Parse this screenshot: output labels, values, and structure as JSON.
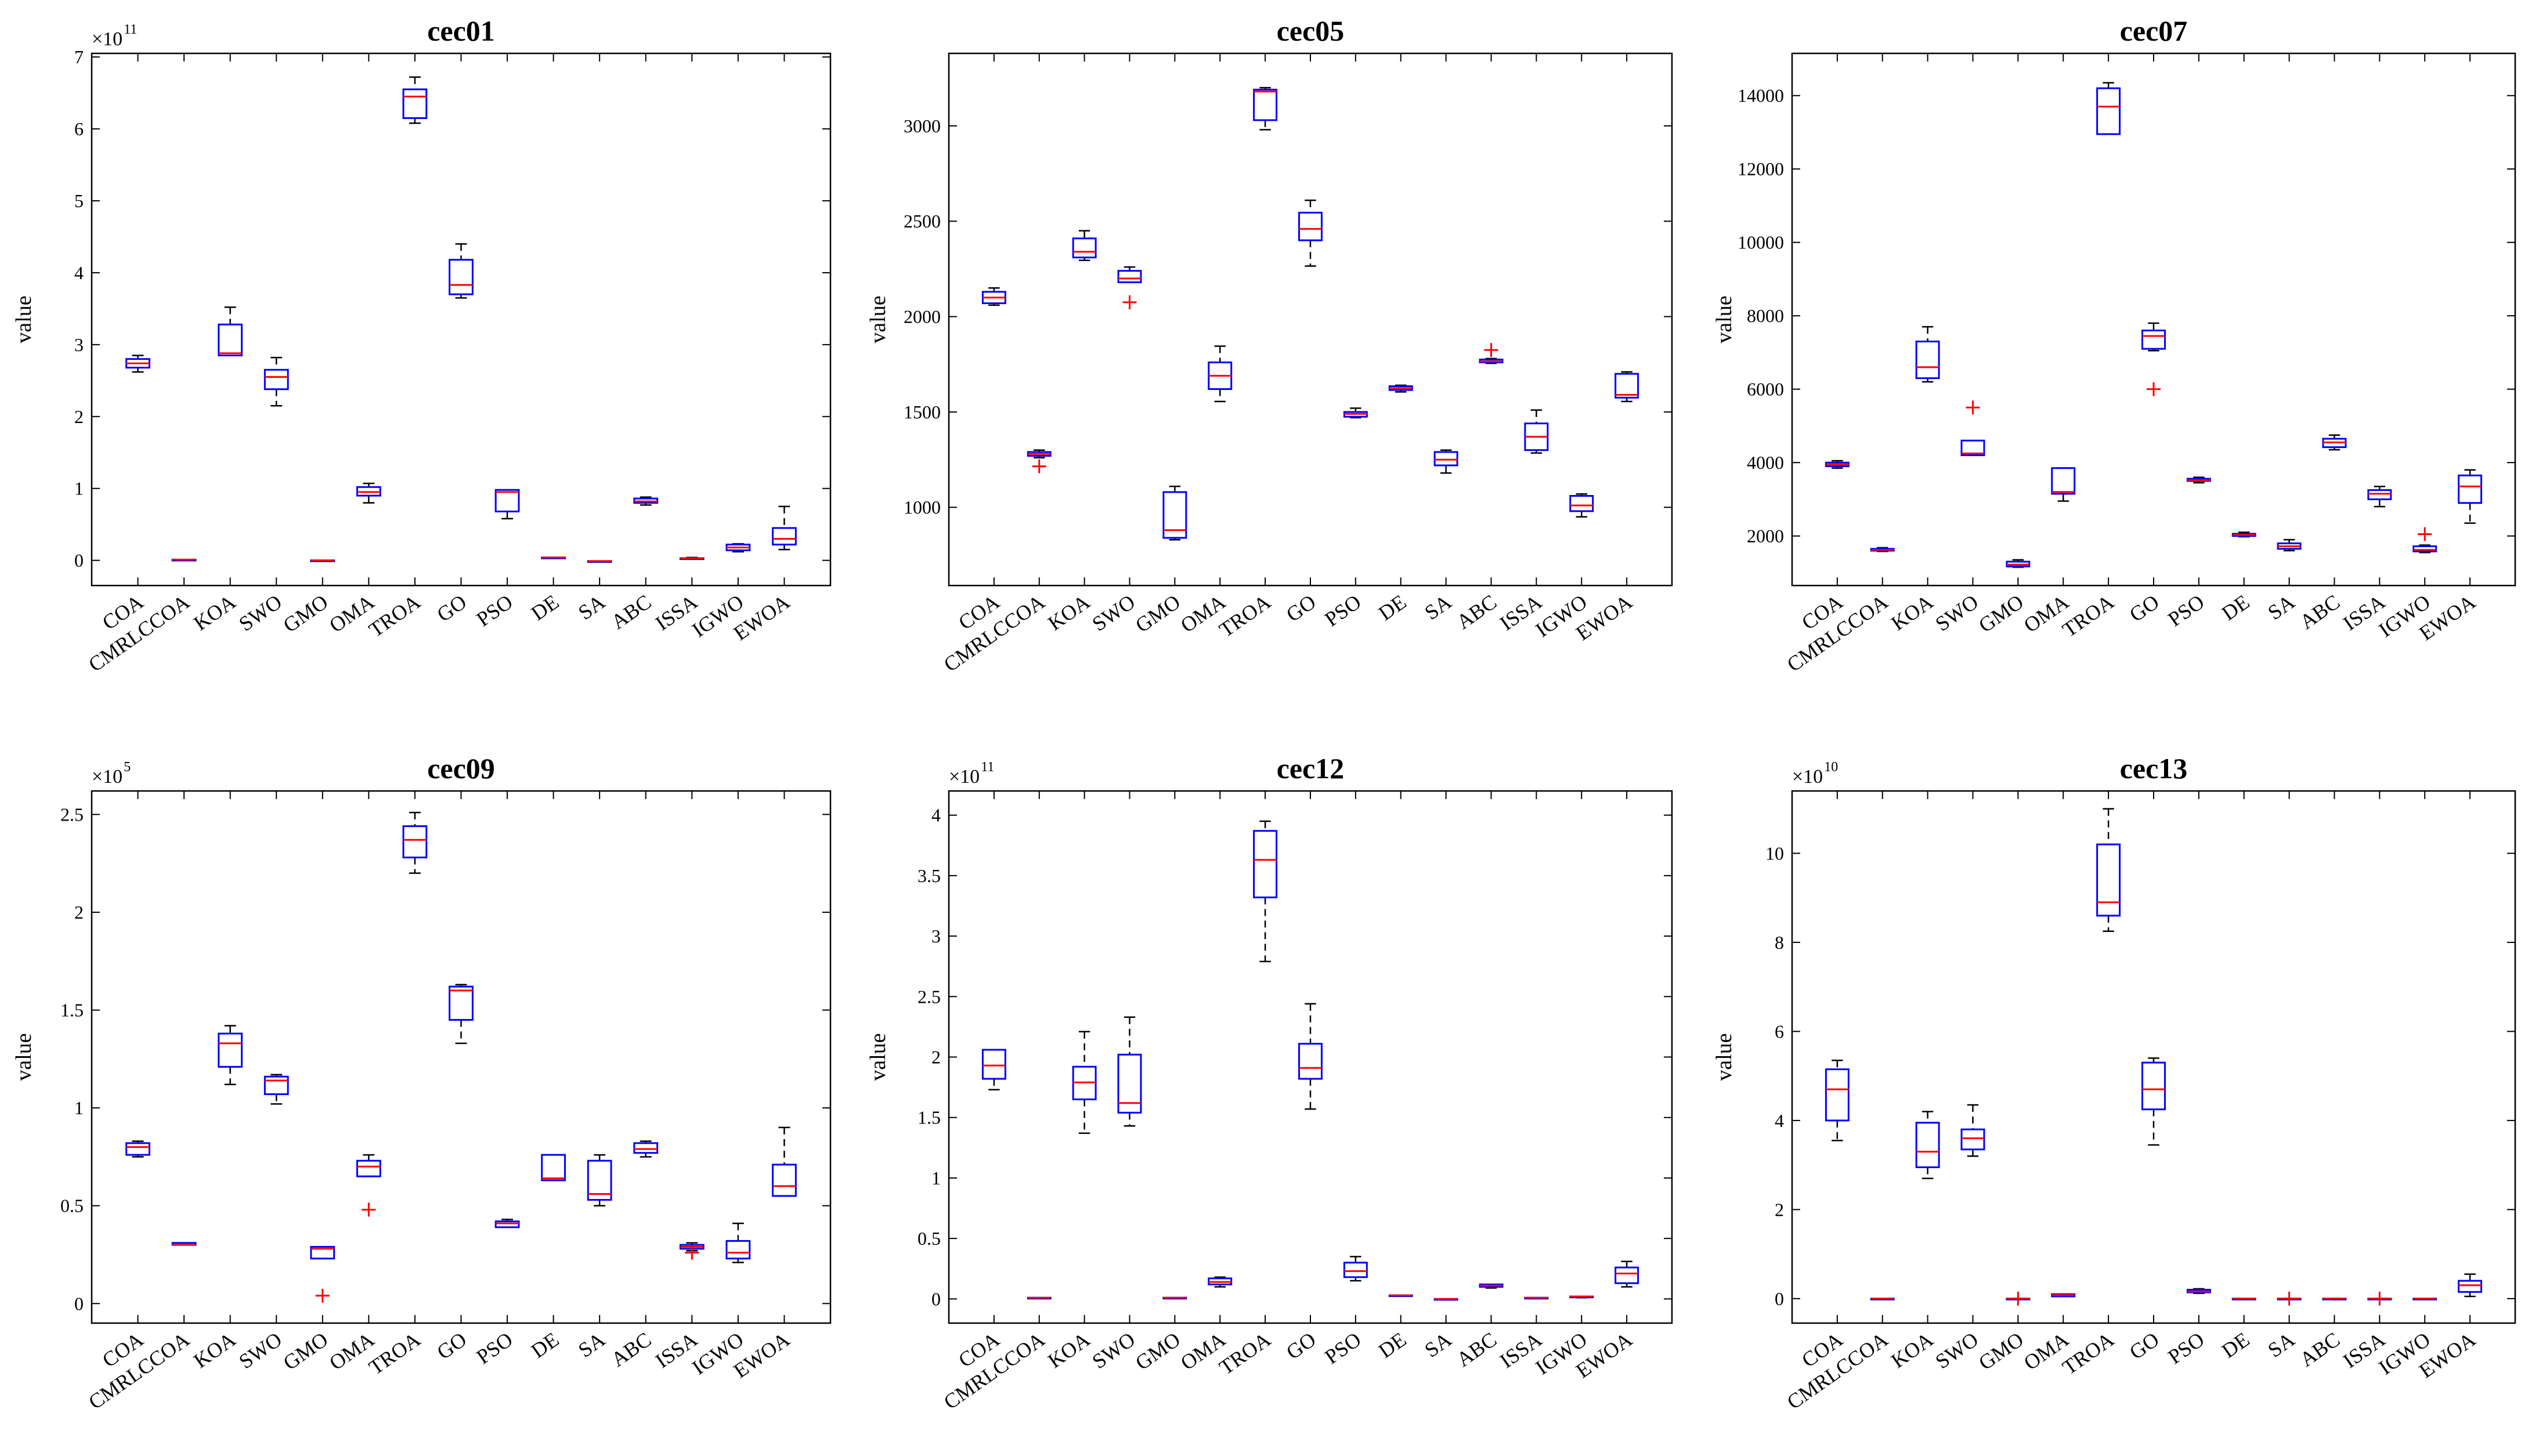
{
  "figure": {
    "categories": [
      "COA",
      "CMRLCCOA",
      "KOA",
      "SWO",
      "GMO",
      "OMA",
      "TROA",
      "GO",
      "PSO",
      "DE",
      "SA",
      "ABC",
      "ISSA",
      "IGWO",
      "EWOA"
    ],
    "colors": {
      "box": "#0000ff",
      "median": "#ff0000",
      "whisker": "#000000",
      "outlier": "#ff0000",
      "axis": "#000000"
    }
  },
  "chart_data": [
    {
      "type": "box",
      "title": "cec01",
      "ylabel": "value",
      "xlabel": "",
      "multiplier": {
        "base": "×10",
        "exp": "11"
      },
      "ylim": [
        -0.35,
        7.05
      ],
      "yticks": [
        0,
        1,
        2,
        3,
        4,
        5,
        6,
        7
      ],
      "ytick_labels": [
        "0",
        "1",
        "2",
        "3",
        "4",
        "5",
        "6",
        "7"
      ],
      "boxes": [
        [
          2.62,
          2.68,
          2.74,
          2.8,
          2.85
        ],
        [
          0.01,
          0.01,
          0.01,
          0.01,
          0.01
        ],
        [
          2.85,
          2.85,
          2.88,
          3.28,
          3.52
        ],
        [
          2.15,
          2.38,
          2.55,
          2.65,
          2.82
        ],
        [
          0.0,
          0.0,
          0.0,
          0.0,
          0.0
        ],
        [
          0.8,
          0.9,
          0.95,
          1.02,
          1.07
        ],
        [
          6.08,
          6.15,
          6.45,
          6.55,
          6.72
        ],
        [
          3.65,
          3.7,
          3.83,
          4.18,
          4.4
        ],
        [
          0.58,
          0.68,
          0.95,
          0.98,
          0.98
        ],
        [
          0.04,
          0.04,
          0.04,
          0.04,
          0.04
        ],
        [
          -0.01,
          -0.01,
          -0.01,
          -0.01,
          -0.01
        ],
        [
          0.77,
          0.8,
          0.82,
          0.86,
          0.88
        ],
        [
          0.02,
          0.02,
          0.03,
          0.03,
          0.04
        ],
        [
          0.12,
          0.14,
          0.18,
          0.22,
          0.23
        ],
        [
          0.15,
          0.22,
          0.3,
          0.45,
          0.75
        ]
      ],
      "outliers": []
    },
    {
      "type": "box",
      "title": "cec05",
      "ylabel": "value",
      "xlabel": "",
      "multiplier": null,
      "ylim": [
        590,
        3380
      ],
      "yticks": [
        1000,
        1500,
        2000,
        2500,
        3000
      ],
      "ytick_labels": [
        "1000",
        "1500",
        "2000",
        "2500",
        "3000"
      ],
      "boxes": [
        [
          2060,
          2070,
          2100,
          2130,
          2150
        ],
        [
          1260,
          1270,
          1280,
          1290,
          1300
        ],
        [
          2295,
          2310,
          2340,
          2410,
          2450
        ],
        [
          2180,
          2180,
          2200,
          2240,
          2260
        ],
        [
          830,
          840,
          880,
          1080,
          1110
        ],
        [
          1555,
          1620,
          1690,
          1760,
          1845
        ],
        [
          2980,
          3030,
          3180,
          3190,
          3200
        ],
        [
          2265,
          2400,
          2460,
          2545,
          2610
        ],
        [
          1470,
          1475,
          1490,
          1500,
          1520
        ],
        [
          1605,
          1615,
          1625,
          1635,
          1640
        ],
        [
          1180,
          1220,
          1250,
          1290,
          1300
        ],
        [
          1755,
          1760,
          1765,
          1775,
          1780
        ],
        [
          1285,
          1300,
          1370,
          1440,
          1510
        ],
        [
          950,
          980,
          1010,
          1060,
          1070
        ],
        [
          1555,
          1575,
          1590,
          1700,
          1710
        ]
      ],
      "outliers": [
        {
          "category": "CMRLCCOA",
          "value": 1215
        },
        {
          "category": "SWO",
          "value": 2075
        },
        {
          "category": "ABC",
          "value": 1825
        }
      ]
    },
    {
      "type": "box",
      "title": "cec07",
      "ylabel": "value",
      "xlabel": "",
      "multiplier": null,
      "ylim": [
        650,
        15150
      ],
      "yticks": [
        2000,
        4000,
        6000,
        8000,
        10000,
        12000,
        14000
      ],
      "ytick_labels": [
        "2000",
        "4000",
        "6000",
        "8000",
        "10000",
        "12000",
        "14000"
      ],
      "boxes": [
        [
          3850,
          3900,
          3950,
          4000,
          4050
        ],
        [
          1580,
          1600,
          1620,
          1650,
          1680
        ],
        [
          6200,
          6300,
          6600,
          7300,
          7700
        ],
        [
          4200,
          4200,
          4250,
          4600,
          4600
        ],
        [
          1150,
          1170,
          1220,
          1300,
          1350
        ],
        [
          2950,
          3150,
          3200,
          3850,
          3850
        ],
        [
          12950,
          12950,
          13700,
          14200,
          14350
        ],
        [
          7050,
          7100,
          7450,
          7600,
          7800
        ],
        [
          3450,
          3500,
          3520,
          3560,
          3600
        ],
        [
          1980,
          2000,
          2030,
          2060,
          2100
        ],
        [
          1600,
          1650,
          1720,
          1800,
          1900
        ],
        [
          4350,
          4420,
          4550,
          4650,
          4750
        ],
        [
          2800,
          3000,
          3150,
          3250,
          3350
        ],
        [
          1550,
          1580,
          1620,
          1720,
          1750
        ],
        [
          2350,
          2900,
          3350,
          3650,
          3800
        ]
      ],
      "outliers": [
        {
          "category": "SWO",
          "value": 5500
        },
        {
          "category": "GO",
          "value": 6000
        },
        {
          "category": "IGWO",
          "value": 2050
        }
      ]
    },
    {
      "type": "box",
      "title": "cec09",
      "ylabel": "value",
      "xlabel": "",
      "multiplier": {
        "base": "×10",
        "exp": "5"
      },
      "ylim": [
        -0.1,
        2.62
      ],
      "yticks": [
        0,
        0.5,
        1,
        1.5,
        2,
        2.5
      ],
      "ytick_labels": [
        "0",
        "0.5",
        "1",
        "1.5",
        "2",
        "2.5"
      ],
      "boxes": [
        [
          0.75,
          0.76,
          0.8,
          0.82,
          0.83
        ],
        [
          0.3,
          0.3,
          0.3,
          0.31,
          0.31
        ],
        [
          1.12,
          1.21,
          1.33,
          1.38,
          1.42
        ],
        [
          1.02,
          1.07,
          1.14,
          1.16,
          1.17
        ],
        [
          0.23,
          0.23,
          0.28,
          0.29,
          0.29
        ],
        [
          0.65,
          0.65,
          0.7,
          0.73,
          0.76
        ],
        [
          2.2,
          2.28,
          2.37,
          2.44,
          2.51
        ],
        [
          1.33,
          1.45,
          1.6,
          1.62,
          1.63
        ],
        [
          0.39,
          0.39,
          0.41,
          0.42,
          0.43
        ],
        [
          0.63,
          0.63,
          0.64,
          0.76,
          0.76
        ],
        [
          0.5,
          0.53,
          0.56,
          0.73,
          0.76
        ],
        [
          0.75,
          0.77,
          0.79,
          0.82,
          0.83
        ],
        [
          0.27,
          0.28,
          0.29,
          0.3,
          0.31
        ],
        [
          0.21,
          0.23,
          0.26,
          0.32,
          0.41
        ],
        [
          0.55,
          0.55,
          0.6,
          0.71,
          0.9
        ]
      ],
      "outliers": [
        {
          "category": "GMO",
          "value": 0.04
        },
        {
          "category": "OMA",
          "value": 0.48
        },
        {
          "category": "ISSA",
          "value": 0.26
        }
      ]
    },
    {
      "type": "box",
      "title": "cec12",
      "ylabel": "value",
      "xlabel": "",
      "multiplier": {
        "base": "×10",
        "exp": "11"
      },
      "ylim": [
        -0.2,
        4.2
      ],
      "yticks": [
        0,
        0.5,
        1,
        1.5,
        2,
        2.5,
        3,
        3.5,
        4
      ],
      "ytick_labels": [
        "0",
        "0.5",
        "1",
        "1.5",
        "2",
        "2.5",
        "3",
        "3.5",
        "4"
      ],
      "boxes": [
        [
          1.73,
          1.82,
          1.93,
          2.06,
          2.06
        ],
        [
          0.01,
          0.01,
          0.01,
          0.01,
          0.01
        ],
        [
          1.37,
          1.65,
          1.79,
          1.92,
          2.21
        ],
        [
          1.43,
          1.54,
          1.62,
          2.02,
          2.33
        ],
        [
          0.01,
          0.01,
          0.01,
          0.01,
          0.01
        ],
        [
          0.1,
          0.12,
          0.14,
          0.17,
          0.18
        ],
        [
          2.79,
          3.32,
          3.63,
          3.87,
          3.95
        ],
        [
          1.57,
          1.82,
          1.91,
          2.11,
          2.44
        ],
        [
          0.15,
          0.18,
          0.23,
          0.3,
          0.35
        ],
        [
          0.03,
          0.03,
          0.03,
          0.03,
          0.03
        ],
        [
          0.0,
          0.0,
          0.0,
          0.0,
          0.0
        ],
        [
          0.09,
          0.1,
          0.11,
          0.12,
          0.12
        ],
        [
          0.01,
          0.01,
          0.01,
          0.01,
          0.01
        ],
        [
          0.01,
          0.02,
          0.02,
          0.02,
          0.02
        ],
        [
          0.1,
          0.13,
          0.21,
          0.26,
          0.31
        ]
      ],
      "outliers": []
    },
    {
      "type": "box",
      "title": "cec13",
      "ylabel": "value",
      "xlabel": "",
      "multiplier": {
        "base": "×10",
        "exp": "10"
      },
      "ylim": [
        -0.55,
        11.4
      ],
      "yticks": [
        0,
        2,
        4,
        6,
        8,
        10
      ],
      "ytick_labels": [
        "0",
        "2",
        "4",
        "6",
        "8",
        "10"
      ],
      "boxes": [
        [
          3.55,
          4.0,
          4.7,
          5.15,
          5.35
        ],
        [
          0.0,
          0.0,
          0.0,
          0.0,
          0.0
        ],
        [
          2.7,
          2.95,
          3.3,
          3.95,
          4.2
        ],
        [
          3.2,
          3.35,
          3.6,
          3.8,
          4.35
        ],
        [
          0.0,
          0.0,
          0.0,
          0.0,
          0.0
        ],
        [
          0.05,
          0.05,
          0.08,
          0.1,
          0.1
        ],
        [
          8.25,
          8.6,
          8.9,
          10.2,
          11.0
        ],
        [
          3.45,
          4.25,
          4.7,
          5.3,
          5.4
        ],
        [
          0.12,
          0.14,
          0.16,
          0.2,
          0.22
        ],
        [
          0.0,
          0.0,
          0.0,
          0.0,
          0.0
        ],
        [
          0.0,
          0.0,
          0.0,
          0.0,
          0.0
        ],
        [
          0.0,
          0.0,
          0.0,
          0.0,
          0.0
        ],
        [
          0.0,
          0.0,
          0.0,
          0.0,
          0.0
        ],
        [
          0.0,
          0.0,
          0.0,
          0.0,
          0.0
        ],
        [
          0.05,
          0.15,
          0.3,
          0.4,
          0.55
        ]
      ],
      "outliers": [
        {
          "category": "GMO",
          "value": 0.0
        },
        {
          "category": "SA",
          "value": 0.0
        },
        {
          "category": "ISSA",
          "value": 0.0
        }
      ]
    }
  ]
}
